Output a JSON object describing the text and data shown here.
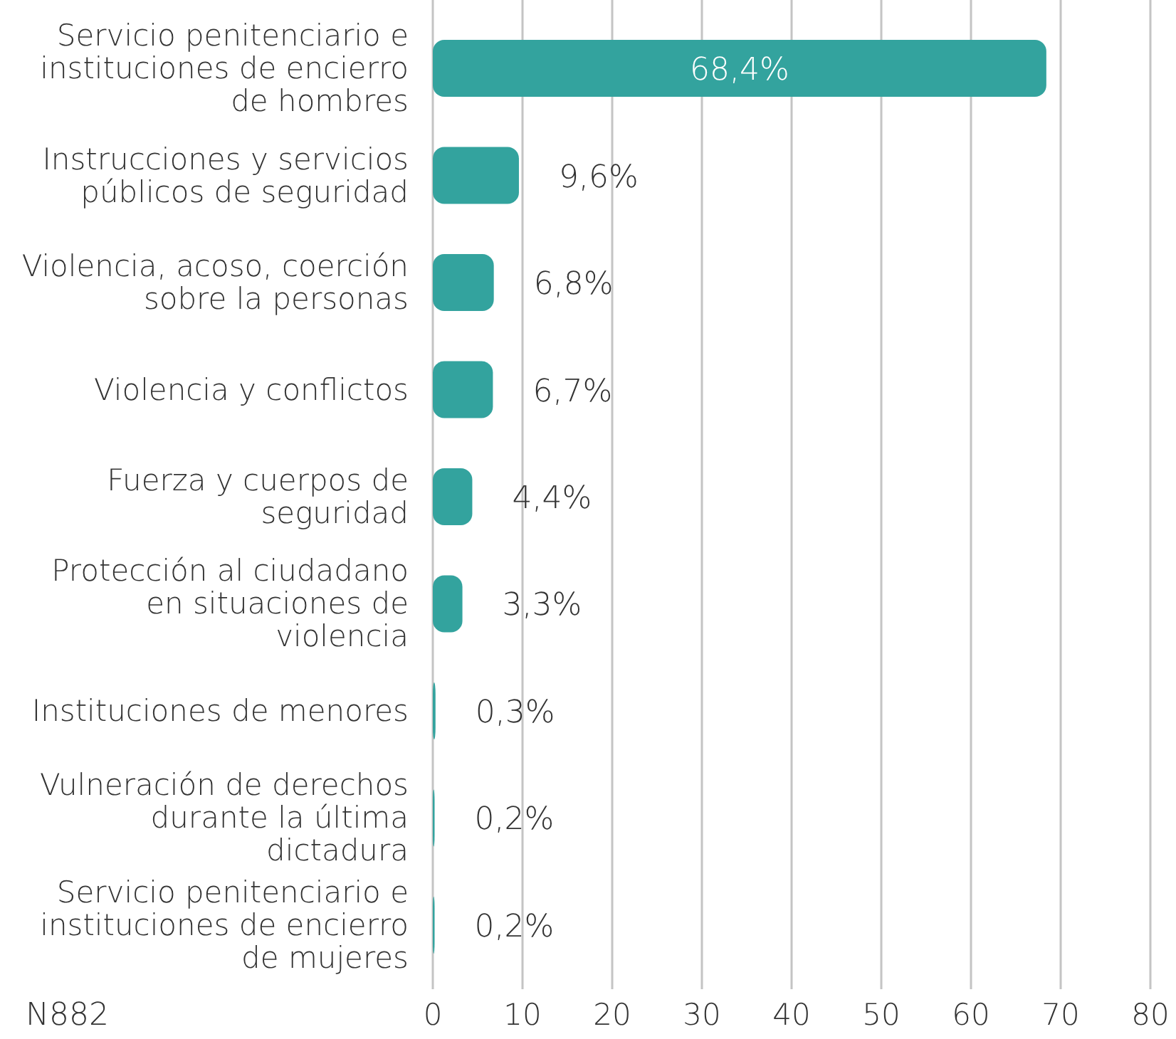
{
  "chart_data": {
    "type": "bar",
    "orientation": "horizontal",
    "categories": [
      "Servicio penitenciario e instituciones de encierro de hombres",
      "Instrucciones y servicios públicos de seguridad",
      "Violencia, acoso, coerción sobre la personas",
      "Violencia y conflictos",
      "Fuerza y cuerpos de seguridad",
      "Protección al ciudadano en situaciones de violencia",
      "Instituciones de menores",
      "Vulneración de derechos durante la última dictadura",
      "Servicio penitenciario e instituciones de encierro de mujeres"
    ],
    "values": [
      68.4,
      9.6,
      6.8,
      6.7,
      4.4,
      3.3,
      0.3,
      0.2,
      0.2
    ],
    "value_labels": [
      "68,4%",
      "9,6%",
      "6,8%",
      "6,7%",
      "4,4%",
      "3,3%",
      "0,3%",
      "0,2%",
      "0,2%"
    ],
    "color": "#33a39e",
    "xlim": [
      0,
      80
    ],
    "xticks": [
      0,
      10,
      20,
      30,
      40,
      50,
      60,
      70,
      80
    ],
    "grid": "x",
    "annotations": [
      "N882"
    ]
  }
}
